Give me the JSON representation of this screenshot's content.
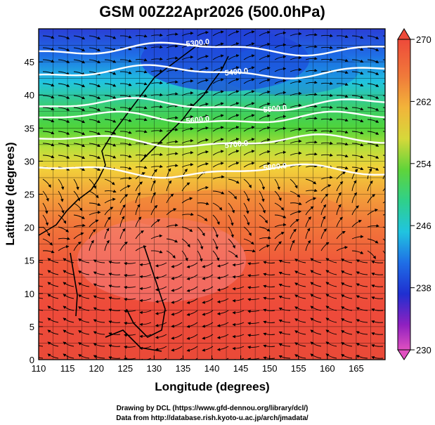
{
  "title": "GSM 00Z22Apr2026 (500.0hPa)",
  "chart_data": {
    "type": "heatmap",
    "title": "GSM 00Z22Apr2026 (500.0hPa)",
    "xlabel": "Longitude (degrees)",
    "ylabel": "Latitude  (degrees)",
    "xlim": [
      110,
      170
    ],
    "ylim": [
      0,
      50
    ],
    "x_ticks": [
      "110",
      "115",
      "120",
      "125",
      "130",
      "135",
      "140",
      "145",
      "150",
      "155",
      "160",
      "165"
    ],
    "y_ticks": [
      "0",
      "5",
      "10",
      "15",
      "20",
      "25",
      "30",
      "35",
      "40",
      "45"
    ],
    "colorbar": {
      "ticks": [
        "270",
        "262",
        "254",
        "246",
        "238",
        "230"
      ],
      "range": [
        230,
        270
      ]
    },
    "contours": [
      {
        "label": "5300.0",
        "lat": 47.0
      },
      {
        "label": "5400.0",
        "lat": 43.5
      },
      {
        "label": "5500.0",
        "lat": 38.5
      },
      {
        "label": "5600.0",
        "lat": 36.5
      },
      {
        "label": "5700.0",
        "lat": 33.0
      },
      {
        "label": "5800.0",
        "lat": 28.5
      }
    ],
    "grid": true,
    "vector_field": "wind streamlines"
  },
  "footer": {
    "line1": "Drawing by DCL (https://www.gfd-dennou.org/library/dcl/)",
    "line2": "Data from http://database.rish.kyoto-u.ac.jp/arch/jmadata/"
  }
}
